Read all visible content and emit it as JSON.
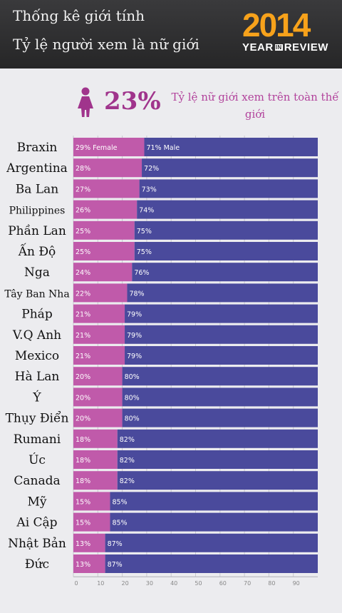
{
  "header": {
    "title": "Thống kê giới tính",
    "subtitle": "Tỷ lệ người xem là nữ giới",
    "logo_year": "2014",
    "logo_word1": "YEAR",
    "logo_word_in": "IN",
    "logo_word2": "REVIEW"
  },
  "summary": {
    "value": "23%",
    "label": "Tỷ lệ nữ giới xem trên toàn thế giới",
    "icon": "female-icon"
  },
  "colors": {
    "female": "#c05aaa",
    "male": "#4a4a9c",
    "accent": "#a0348c"
  },
  "chart_data": {
    "type": "bar",
    "orientation": "horizontal",
    "stacked": true,
    "categories": [
      "Braxin",
      "Argentina",
      "Ba Lan",
      "Philippines",
      "Phần Lan",
      "Ấn Độ",
      "Nga",
      "Tây Ban Nha",
      "Pháp",
      "V.Q Anh",
      "Mexico",
      "Hà Lan",
      "Ý",
      "Thụy Điển",
      "Rumani",
      "Úc",
      "Canada",
      "Mỹ",
      "Ai Cập",
      "Nhật Bản",
      "Đức"
    ],
    "series": [
      {
        "name": "Female",
        "values": [
          29,
          28,
          27,
          26,
          25,
          25,
          24,
          22,
          21,
          21,
          21,
          20,
          20,
          20,
          18,
          18,
          18,
          15,
          15,
          13,
          13
        ]
      },
      {
        "name": "Male",
        "values": [
          71,
          72,
          73,
          74,
          75,
          75,
          76,
          78,
          79,
          79,
          79,
          80,
          80,
          80,
          82,
          82,
          82,
          85,
          85,
          87,
          87
        ]
      }
    ],
    "xlim": [
      0,
      100
    ],
    "xticks": [
      0,
      10,
      20,
      30,
      40,
      50,
      60,
      70,
      80,
      90
    ],
    "grid": true
  }
}
